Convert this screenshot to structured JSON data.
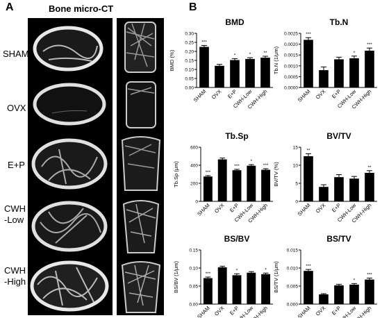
{
  "panel_a": {
    "letter": "A",
    "title": "Bone micro-CT",
    "rows": [
      {
        "label_lines": [
          "SHAM"
        ]
      },
      {
        "label_lines": [
          "OVX"
        ]
      },
      {
        "label_lines": [
          "E+P"
        ]
      },
      {
        "label_lines": [
          "CWH",
          "-Low"
        ]
      },
      {
        "label_lines": [
          "CWH",
          "-High"
        ]
      }
    ]
  },
  "panel_b": {
    "letter": "B"
  },
  "chart_data": [
    {
      "type": "bar",
      "title": "BMD",
      "ylabel": "BMD (%)",
      "categories": [
        "SHAM",
        "OVX",
        "E+P",
        "CWH-Low",
        "CWH-High"
      ],
      "values": [
        0.225,
        0.12,
        0.152,
        0.158,
        0.165
      ],
      "errors": [
        0.008,
        0.008,
        0.008,
        0.007,
        0.008
      ],
      "significance": [
        "***",
        "",
        "*",
        "*",
        "**"
      ],
      "ylim": [
        0,
        0.3
      ],
      "ytick_labels": [
        "0.00",
        "0.05",
        "0.10",
        "0.15",
        "0.20",
        "0.25",
        "0.30"
      ],
      "ytick_values": [
        0,
        0.05,
        0.1,
        0.15,
        0.2,
        0.25,
        0.3
      ]
    },
    {
      "type": "bar",
      "title": "Tb.N",
      "ylabel": "Tb.N (1/μm)",
      "categories": [
        "SHAM",
        "OVX",
        "E+P",
        "CWH-Low",
        "CWH-High"
      ],
      "values": [
        0.0022,
        0.0008,
        0.0013,
        0.00135,
        0.0017
      ],
      "errors": [
        0.0001,
        0.00015,
        0.0001,
        0.0001,
        0.00012
      ],
      "significance": [
        "***",
        "",
        "",
        "*",
        "***"
      ],
      "ylim": [
        0,
        0.0025
      ],
      "ytick_labels": [
        "0.0000",
        "0.0005",
        "0.0010",
        "0.0015",
        "0.0020",
        "0.0025"
      ],
      "ytick_values": [
        0,
        0.0005,
        0.001,
        0.0015,
        0.002,
        0.0025
      ]
    },
    {
      "type": "bar",
      "title": "Tb.Sp",
      "ylabel": "Tb.Sp (μm)",
      "categories": [
        "SHAM",
        "OVX",
        "E+P",
        "CWH-Low",
        "CWH-High"
      ],
      "values": [
        275,
        465,
        345,
        395,
        350
      ],
      "errors": [
        10,
        15,
        10,
        12,
        12
      ],
      "significance": [
        "***",
        "",
        "***",
        "*",
        "***"
      ],
      "ylim": [
        0,
        600
      ],
      "ytick_labels": [
        "0",
        "200",
        "400",
        "600"
      ],
      "ytick_values": [
        0,
        200,
        400,
        600
      ]
    },
    {
      "type": "bar",
      "title": "BV/TV",
      "ylabel": "BV/TV (%)",
      "categories": [
        "SHAM",
        "OVX",
        "E+P",
        "CWH-Low",
        "CWH-High"
      ],
      "values": [
        12.5,
        4.0,
        6.7,
        6.3,
        7.9
      ],
      "errors": [
        0.7,
        0.6,
        0.7,
        0.6,
        0.6
      ],
      "significance": [
        "**",
        "",
        "",
        "",
        "**"
      ],
      "ylim": [
        0,
        15
      ],
      "ytick_labels": [
        "0",
        "5",
        "10",
        "15"
      ],
      "ytick_values": [
        0,
        5,
        10,
        15
      ]
    },
    {
      "type": "bar",
      "title": "BS/BV",
      "ylabel": "BS/BV (1/μm)",
      "categories": [
        "SHAM",
        "OVX",
        "E+P",
        "CWH-Low",
        "CWH-High"
      ],
      "values": [
        0.072,
        0.102,
        0.08,
        0.087,
        0.083
      ],
      "errors": [
        0.003,
        0.003,
        0.004,
        0.003,
        0.003
      ],
      "significance": [
        "***",
        "",
        "*",
        "",
        "*"
      ],
      "ylim": [
        0,
        0.15
      ],
      "ytick_labels": [
        "0.00",
        "0.05",
        "0.10",
        "0.15"
      ],
      "ytick_values": [
        0,
        0.05,
        0.1,
        0.15
      ]
    },
    {
      "type": "bar",
      "title": "BS/TV",
      "ylabel": "BS/TV (1/μm)",
      "categories": [
        "SHAM",
        "OVX",
        "E+P",
        "CWH-Low",
        "CWH-High"
      ],
      "values": [
        0.0092,
        0.0027,
        0.0052,
        0.0054,
        0.0068
      ],
      "errors": [
        0.0004,
        0.0002,
        0.0003,
        0.0003,
        0.0004
      ],
      "significance": [
        "***",
        "",
        "",
        "*",
        "***"
      ],
      "ylim": [
        0,
        0.015
      ],
      "ytick_labels": [
        "0.000",
        "0.005",
        "0.010",
        "0.015"
      ],
      "ytick_values": [
        0,
        0.005,
        0.01,
        0.015
      ]
    }
  ]
}
